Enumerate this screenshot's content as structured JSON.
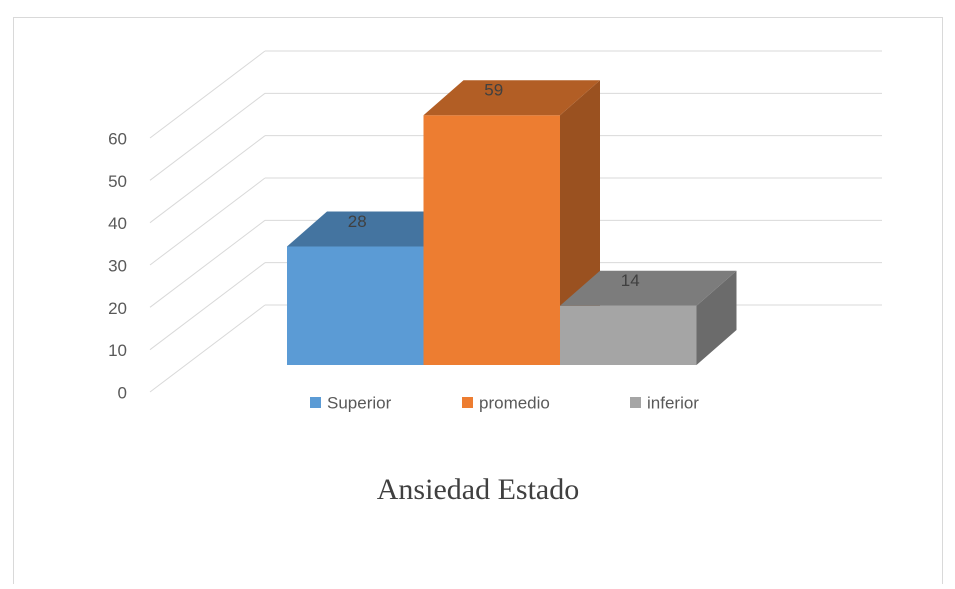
{
  "chart_data": {
    "type": "bar3d",
    "title": "Ansiedad Estado",
    "series": [
      {
        "name": "Superior",
        "color": "#5b9bd5",
        "values": [
          28
        ]
      },
      {
        "name": "promedio",
        "color": "#ed7d31",
        "values": [
          59
        ]
      },
      {
        "name": "inferior",
        "color": "#a5a5a5",
        "values": [
          14
        ]
      }
    ],
    "ylim": [
      0,
      60
    ],
    "yticks": [
      0,
      10,
      20,
      30,
      40,
      50,
      60
    ],
    "grid": true,
    "legend": "bottom"
  }
}
